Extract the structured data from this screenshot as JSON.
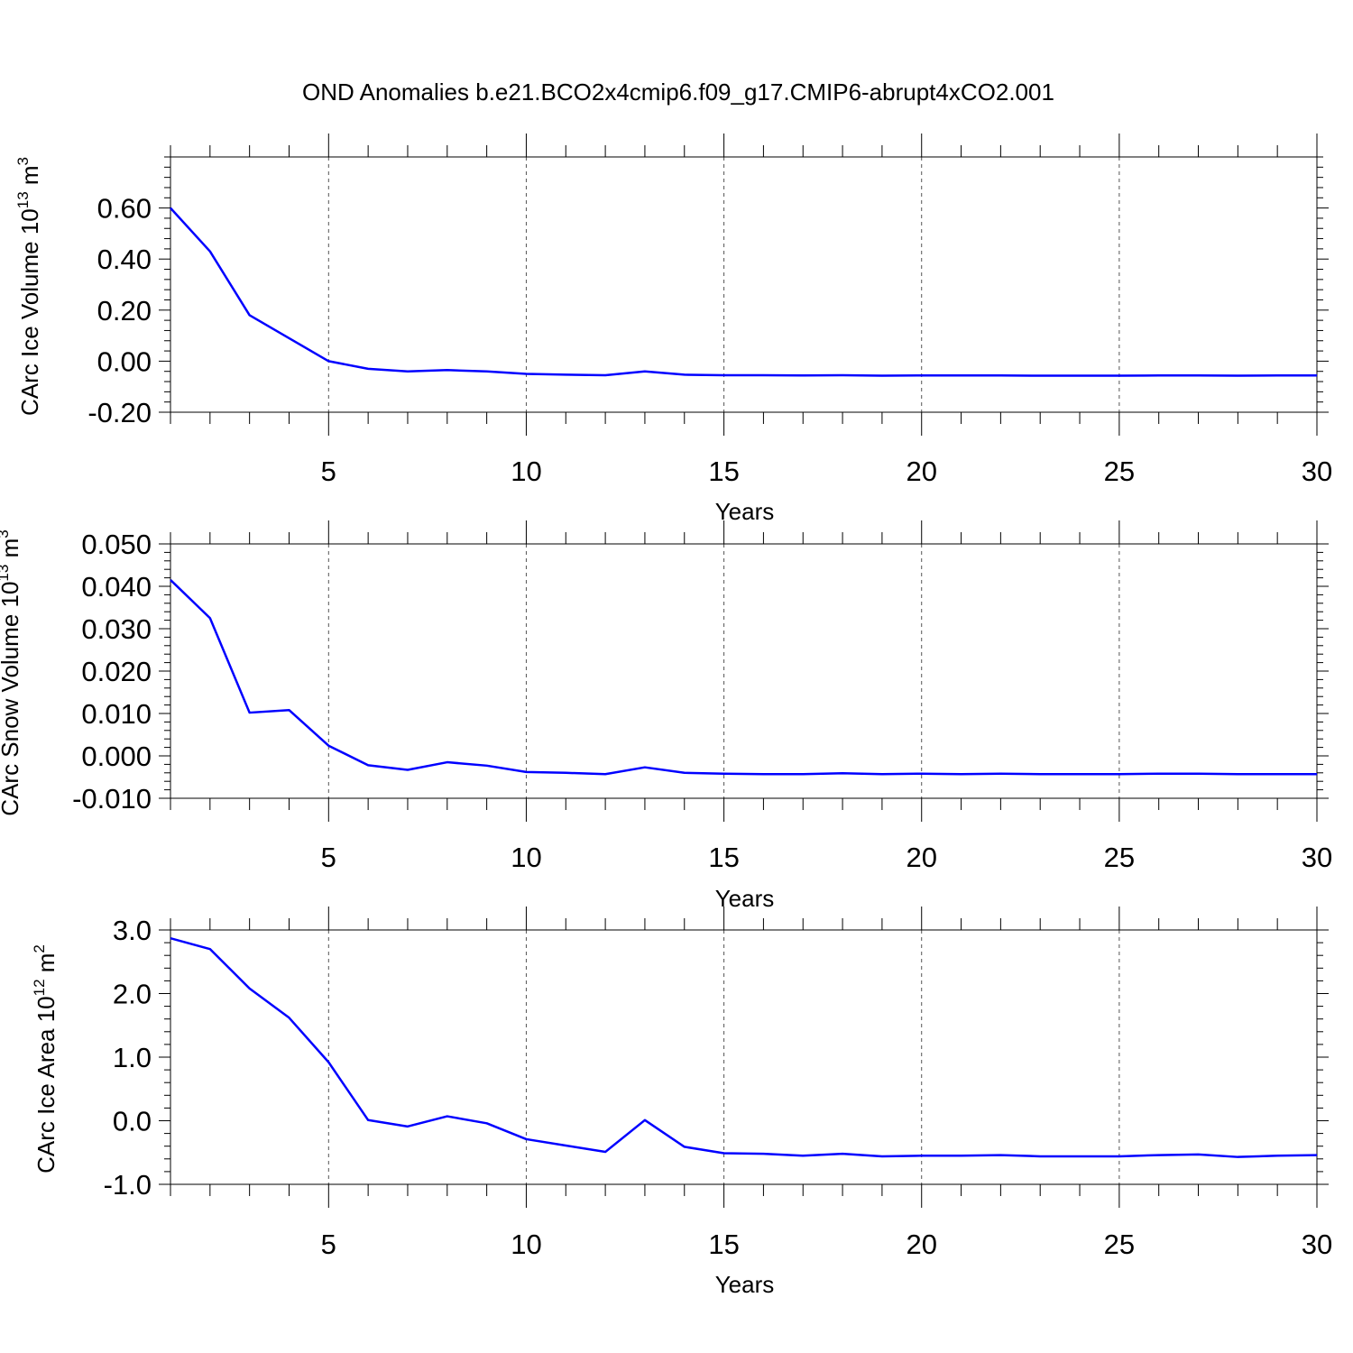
{
  "title": "OND Anomalies b.e21.BCO2x4cmip6.f09_g17.CMIP6-abrupt4xCO2.001",
  "colors": {
    "line": "#0000ff",
    "axis": "#000000",
    "grid": "#555555"
  },
  "chart_data": [
    {
      "type": "line",
      "xlabel": "Years",
      "ylabel": "CArc Ice Volume 10",
      "ylabel_exponent": "13",
      "ylabel_unit": " m",
      "ylabel_unit_exponent": "3",
      "xlim": [
        1,
        30
      ],
      "ylim": [
        -0.2,
        0.8
      ],
      "xticks": [
        5,
        10,
        15,
        20,
        25,
        30
      ],
      "xtick_labels": [
        "5",
        "10",
        "15",
        "20",
        "25",
        "30"
      ],
      "yticks": [
        -0.2,
        0.0,
        0.2,
        0.4,
        0.6
      ],
      "ytick_labels": [
        "-0.20",
        "0.00",
        "0.20",
        "0.40",
        "0.60"
      ],
      "grid": "vertical dashed at major x ticks",
      "x": [
        1,
        2,
        3,
        4,
        5,
        6,
        7,
        8,
        9,
        10,
        11,
        12,
        13,
        14,
        15,
        16,
        17,
        18,
        19,
        20,
        21,
        22,
        23,
        24,
        25,
        26,
        27,
        28,
        29,
        30
      ],
      "series": [
        {
          "values": [
            0.6,
            0.43,
            0.18,
            0.09,
            0.0,
            -0.03,
            -0.04,
            -0.035,
            -0.04,
            -0.05,
            -0.053,
            -0.055,
            -0.04,
            -0.053,
            -0.055,
            -0.055,
            -0.056,
            -0.055,
            -0.057,
            -0.056,
            -0.056,
            -0.056,
            -0.057,
            -0.057,
            -0.057,
            -0.056,
            -0.056,
            -0.057,
            -0.056,
            -0.056
          ]
        }
      ]
    },
    {
      "type": "line",
      "xlabel": "Years",
      "ylabel": "CArc Snow Volume 10",
      "ylabel_exponent": "13",
      "ylabel_unit": " m",
      "ylabel_unit_exponent": "3",
      "xlim": [
        1,
        30
      ],
      "ylim": [
        -0.01,
        0.05
      ],
      "xticks": [
        5,
        10,
        15,
        20,
        25,
        30
      ],
      "xtick_labels": [
        "5",
        "10",
        "15",
        "20",
        "25",
        "30"
      ],
      "yticks": [
        -0.01,
        0.0,
        0.01,
        0.02,
        0.03,
        0.04,
        0.05
      ],
      "ytick_labels": [
        "-0.010",
        "0.000",
        "0.010",
        "0.020",
        "0.030",
        "0.040",
        "0.050"
      ],
      "grid": "vertical dashed at major x ticks",
      "x": [
        1,
        2,
        3,
        4,
        5,
        6,
        7,
        8,
        9,
        10,
        11,
        12,
        13,
        14,
        15,
        16,
        17,
        18,
        19,
        20,
        21,
        22,
        23,
        24,
        25,
        26,
        27,
        28,
        29,
        30
      ],
      "series": [
        {
          "values": [
            0.0415,
            0.0325,
            0.0102,
            0.0108,
            0.0024,
            -0.0022,
            -0.0033,
            -0.0015,
            -0.0023,
            -0.0038,
            -0.004,
            -0.0043,
            -0.0027,
            -0.004,
            -0.0042,
            -0.0043,
            -0.0043,
            -0.0041,
            -0.0043,
            -0.0042,
            -0.0043,
            -0.0042,
            -0.0043,
            -0.0043,
            -0.0043,
            -0.0042,
            -0.0042,
            -0.0043,
            -0.0043,
            -0.0043
          ]
        }
      ]
    },
    {
      "type": "line",
      "xlabel": "Years",
      "ylabel": "CArc Ice Area 10",
      "ylabel_exponent": "12",
      "ylabel_unit": " m",
      "ylabel_unit_exponent": "2",
      "xlim": [
        1,
        30
      ],
      "ylim": [
        -1.0,
        3.0
      ],
      "xticks": [
        5,
        10,
        15,
        20,
        25,
        30
      ],
      "xtick_labels": [
        "5",
        "10",
        "15",
        "20",
        "25",
        "30"
      ],
      "yticks": [
        -1.0,
        0.0,
        1.0,
        2.0,
        3.0
      ],
      "ytick_labels": [
        "-1.0",
        "0.0",
        "1.0",
        "2.0",
        "3.0"
      ],
      "grid": "vertical dashed at major x ticks",
      "x": [
        1,
        2,
        3,
        4,
        5,
        6,
        7,
        8,
        9,
        10,
        11,
        12,
        13,
        14,
        15,
        16,
        17,
        18,
        19,
        20,
        21,
        22,
        23,
        24,
        25,
        26,
        27,
        28,
        29,
        30
      ],
      "series": [
        {
          "values": [
            2.87,
            2.7,
            2.08,
            1.62,
            0.92,
            0.01,
            -0.09,
            0.07,
            -0.04,
            -0.29,
            -0.39,
            -0.49,
            0.01,
            -0.41,
            -0.51,
            -0.52,
            -0.55,
            -0.52,
            -0.56,
            -0.55,
            -0.55,
            -0.54,
            -0.56,
            -0.56,
            -0.56,
            -0.54,
            -0.53,
            -0.57,
            -0.55,
            -0.54
          ]
        }
      ]
    }
  ]
}
